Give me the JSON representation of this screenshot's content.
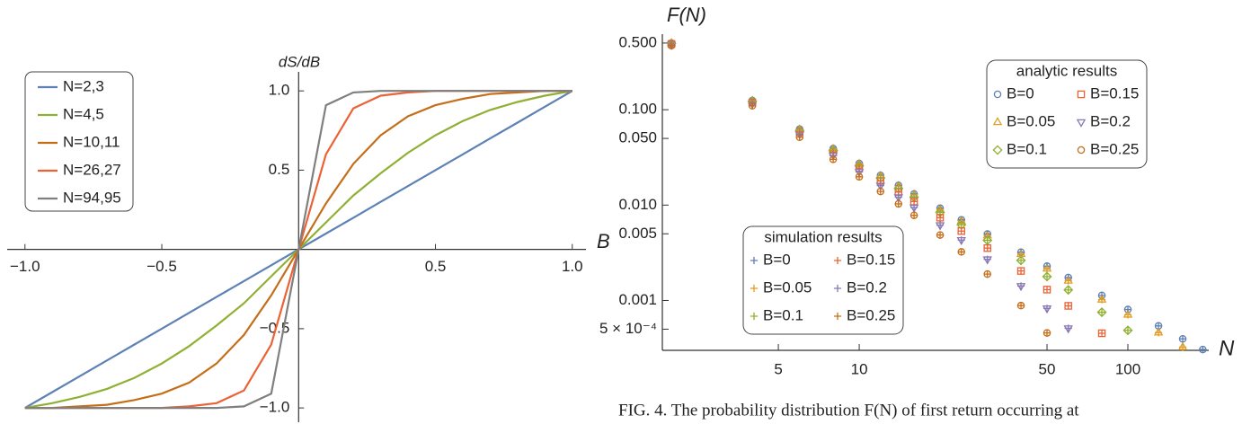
{
  "chart_data": [
    {
      "type": "line",
      "xlabel": "B",
      "ylabel": "dS/dB",
      "x": [
        -1,
        -0.9,
        -0.8,
        -0.7,
        -0.6,
        -0.5,
        -0.4,
        -0.3,
        -0.2,
        -0.1,
        0,
        0.1,
        0.2,
        0.3,
        0.4,
        0.5,
        0.6,
        0.7,
        0.8,
        0.9,
        1
      ],
      "series": [
        {
          "name": "N=2,3",
          "color": "#5e81b5",
          "values": [
            -1,
            -0.9,
            -0.8,
            -0.7,
            -0.6,
            -0.5,
            -0.4,
            -0.3,
            -0.2,
            -0.1,
            0,
            0.1,
            0.2,
            0.3,
            0.4,
            0.5,
            0.6,
            0.7,
            0.8,
            0.9,
            1
          ]
        },
        {
          "name": "N=4,5",
          "color": "#8fb032",
          "values": [
            -1,
            -0.97,
            -0.93,
            -0.88,
            -0.81,
            -0.72,
            -0.61,
            -0.48,
            -0.34,
            -0.17,
            0,
            0.17,
            0.34,
            0.48,
            0.61,
            0.72,
            0.81,
            0.88,
            0.93,
            0.97,
            1
          ]
        },
        {
          "name": "N=10,11",
          "color": "#c56e1a",
          "values": [
            -1,
            -1,
            -0.99,
            -0.98,
            -0.95,
            -0.91,
            -0.84,
            -0.72,
            -0.54,
            -0.29,
            0,
            0.29,
            0.54,
            0.72,
            0.84,
            0.91,
            0.95,
            0.98,
            0.99,
            1,
            1
          ]
        },
        {
          "name": "N=26,27",
          "color": "#eb6235",
          "values": [
            -1,
            -1,
            -1,
            -1,
            -1,
            -1,
            -0.99,
            -0.97,
            -0.89,
            -0.6,
            0,
            0.6,
            0.89,
            0.97,
            0.99,
            1,
            1,
            1,
            1,
            1,
            1
          ]
        },
        {
          "name": "N=94,95",
          "color": "#7f7f7f",
          "values": [
            -1,
            -1,
            -1,
            -1,
            -1,
            -1,
            -1,
            -1,
            -0.99,
            -0.91,
            0,
            0.91,
            0.99,
            1,
            1,
            1,
            1,
            1,
            1,
            1,
            1
          ]
        }
      ],
      "xlim": [
        -1.065,
        1.05
      ],
      "ylim": [
        -1.09,
        1.12
      ],
      "xticks": [
        {
          "value": -1,
          "label": "−1.0"
        },
        {
          "value": -0.5,
          "label": "−0.5"
        },
        0.5,
        {
          "value": 1,
          "label": "1.0"
        }
      ],
      "yticks": [
        {
          "value": 1,
          "label": "1.0"
        },
        0.5,
        {
          "value": -0.5,
          "label": "−0.5"
        },
        {
          "value": -1,
          "label": "−1.0"
        }
      ],
      "legend_position": "upper left"
    },
    {
      "type": "scatter",
      "xlabel": "N",
      "ylabel": "F(N)",
      "xscale": "log",
      "yscale": "log",
      "x": [
        2,
        4,
        6,
        8,
        10,
        12,
        14,
        16,
        20,
        24,
        30,
        40,
        50,
        60,
        80,
        100,
        130,
        160,
        190
      ],
      "series_groups": [
        {
          "title": "analytic results",
          "legend_position": "upper right",
          "series": [
            {
              "name": "B=0",
              "color": "#5e81b5",
              "marker": "circle",
              "values": [
                0.5,
                0.125,
                0.0625,
                0.0391,
                0.0273,
                0.0205,
                0.0161,
                0.0131,
                0.00927,
                0.00701,
                0.00498,
                0.00321,
                0.00229,
                0.00174,
                0.00113,
                0.000804,
                0.000541,
                0.000396,
                0.000306
              ]
            },
            {
              "name": "B=0.05",
              "color": "#e19c24",
              "marker": "triangle",
              "values": [
                0.499,
                0.124,
                0.062,
                0.0387,
                0.027,
                0.0202,
                0.0158,
                0.0128,
                0.00904,
                0.0068,
                0.0048,
                0.00306,
                0.00215,
                0.00161,
                0.00102,
                0.000709,
                0.00046,
                0.000324,
                null
              ]
            },
            {
              "name": "B=0.1",
              "color": "#8fb032",
              "marker": "diamond",
              "values": [
                0.495,
                0.1225,
                0.0606,
                0.0376,
                0.026,
                0.0193,
                0.015,
                0.0121,
                0.00838,
                0.00621,
                0.00428,
                0.00263,
                0.00178,
                0.00129,
                0.000753,
                0.000486,
                null,
                null,
                null
              ]
            },
            {
              "name": "B=0.15",
              "color": "#eb6235",
              "marker": "square",
              "values": [
                0.489,
                0.119,
                0.0584,
                0.0357,
                0.0244,
                0.0179,
                0.0137,
                0.0109,
                0.00738,
                0.00534,
                0.00354,
                0.00204,
                0.0013,
                0.000878,
                0.000453,
                null,
                null,
                null,
                null
              ]
            },
            {
              "name": "B=0.2",
              "color": "#8778b3",
              "marker": "triangle-down",
              "values": [
                0.48,
                0.115,
                0.0553,
                0.0332,
                0.0223,
                0.016,
                0.0121,
                0.00944,
                0.00616,
                0.0043,
                0.0027,
                0.00142,
                0.000826,
                0.000511,
                null,
                null,
                null,
                null,
                null
              ]
            },
            {
              "name": "B=0.25",
              "color": "#c56e1a",
              "marker": "circle",
              "values": [
                0.469,
                0.11,
                0.0515,
                0.0302,
                0.0198,
                0.0139,
                0.0103,
                0.00781,
                0.00486,
                0.00323,
                0.00189,
                0.000884,
                0.000457,
                null,
                null,
                null,
                null,
                null,
                null
              ]
            }
          ]
        },
        {
          "title": "simulation results",
          "legend_position": "lower left",
          "series": [
            {
              "name": "B=0",
              "color": "#5e81b5",
              "marker": "plus",
              "values": [
                0.5,
                0.125,
                0.0625,
                0.0391,
                0.0273,
                0.0205,
                0.0161,
                0.0131,
                0.00927,
                0.00701,
                0.00498,
                0.00321,
                0.00229,
                0.00174,
                0.00113,
                0.000804,
                0.000541,
                0.000396,
                0.000306
              ]
            },
            {
              "name": "B=0.05",
              "color": "#e19c24",
              "marker": "plus",
              "values": [
                0.499,
                0.124,
                0.062,
                0.0387,
                0.027,
                0.0202,
                0.0158,
                0.0128,
                0.00904,
                0.0068,
                0.0048,
                0.00306,
                0.00215,
                0.00161,
                0.00102,
                0.000709,
                0.00046,
                0.000324,
                null
              ]
            },
            {
              "name": "B=0.1",
              "color": "#8fb032",
              "marker": "plus",
              "values": [
                0.495,
                0.1225,
                0.0606,
                0.0376,
                0.026,
                0.0193,
                0.015,
                0.0121,
                0.00838,
                0.00621,
                0.00428,
                0.00263,
                0.00178,
                0.00129,
                0.000753,
                0.000486,
                null,
                null,
                null
              ]
            },
            {
              "name": "B=0.15",
              "color": "#eb6235",
              "marker": "plus",
              "values": [
                0.489,
                0.119,
                0.0584,
                0.0357,
                0.0244,
                0.0179,
                0.0137,
                0.0109,
                0.00738,
                0.00534,
                0.00354,
                0.00204,
                0.0013,
                0.000878,
                0.000453,
                null,
                null,
                null,
                null
              ]
            },
            {
              "name": "B=0.2",
              "color": "#8778b3",
              "marker": "plus",
              "values": [
                0.48,
                0.115,
                0.0553,
                0.0332,
                0.0223,
                0.016,
                0.0121,
                0.00944,
                0.00616,
                0.0043,
                0.0027,
                0.00142,
                0.000826,
                0.000511,
                null,
                null,
                null,
                null,
                null
              ]
            },
            {
              "name": "B=0.25",
              "color": "#c56e1a",
              "marker": "plus",
              "values": [
                0.469,
                0.11,
                0.0515,
                0.0302,
                0.0198,
                0.0139,
                0.0103,
                0.00781,
                0.00486,
                0.00323,
                0.00189,
                0.000884,
                0.000457,
                null,
                null,
                null,
                null,
                null,
                null
              ]
            }
          ]
        }
      ],
      "xlim": [
        1.85,
        200
      ],
      "ylim": [
        0.0003,
        0.62
      ],
      "xticks": [
        5,
        10,
        50,
        100
      ],
      "yticks": [
        {
          "value": 0.5,
          "label": "0.500"
        },
        {
          "value": 0.1,
          "label": "0.100"
        },
        {
          "value": 0.05,
          "label": "0.050"
        },
        {
          "value": 0.01,
          "label": "0.010"
        },
        0.005,
        0.001,
        {
          "value": 0.0005,
          "label": "5 × 10⁻⁴"
        }
      ]
    }
  ],
  "caption": "FIG. 4. The probability distribution F(N) of first return occurring at"
}
